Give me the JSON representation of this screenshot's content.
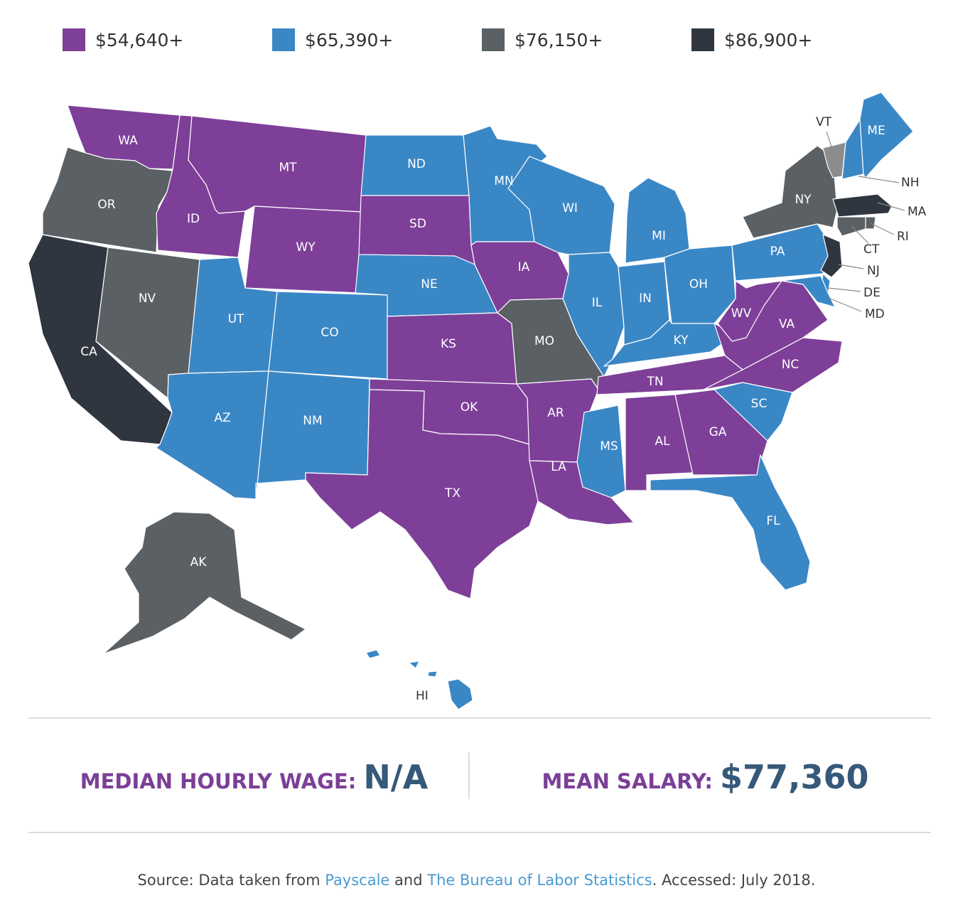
{
  "legend": [
    {
      "label": "$54,640+",
      "color": "#7e3f98"
    },
    {
      "label": "$65,390+",
      "color": "#3a87c6"
    },
    {
      "label": "$76,150+",
      "color": "#5b6064"
    },
    {
      "label": "$86,900+",
      "color": "#30363f"
    }
  ],
  "extra_color": "#8c8c8c",
  "states": [
    {
      "abbr": "WA",
      "tier": 0
    },
    {
      "abbr": "OR",
      "tier": 2
    },
    {
      "abbr": "CA",
      "tier": 3
    },
    {
      "abbr": "ID",
      "tier": 0
    },
    {
      "abbr": "NV",
      "tier": 2
    },
    {
      "abbr": "MT",
      "tier": 0
    },
    {
      "abbr": "WY",
      "tier": 0
    },
    {
      "abbr": "UT",
      "tier": 1
    },
    {
      "abbr": "AZ",
      "tier": 1
    },
    {
      "abbr": "CO",
      "tier": 1
    },
    {
      "abbr": "NM",
      "tier": 1
    },
    {
      "abbr": "ND",
      "tier": 1
    },
    {
      "abbr": "SD",
      "tier": 0
    },
    {
      "abbr": "NE",
      "tier": 1
    },
    {
      "abbr": "KS",
      "tier": 0
    },
    {
      "abbr": "OK",
      "tier": 0
    },
    {
      "abbr": "TX",
      "tier": 0
    },
    {
      "abbr": "MN",
      "tier": 1
    },
    {
      "abbr": "IA",
      "tier": 0
    },
    {
      "abbr": "MO",
      "tier": 2
    },
    {
      "abbr": "AR",
      "tier": 0
    },
    {
      "abbr": "LA",
      "tier": 0
    },
    {
      "abbr": "WI",
      "tier": 1
    },
    {
      "abbr": "IL",
      "tier": 1
    },
    {
      "abbr": "MI",
      "tier": 1
    },
    {
      "abbr": "IN",
      "tier": 1
    },
    {
      "abbr": "OH",
      "tier": 1
    },
    {
      "abbr": "KY",
      "tier": 1
    },
    {
      "abbr": "TN",
      "tier": 0
    },
    {
      "abbr": "MS",
      "tier": 1
    },
    {
      "abbr": "AL",
      "tier": 0
    },
    {
      "abbr": "GA",
      "tier": 0
    },
    {
      "abbr": "FL",
      "tier": 1
    },
    {
      "abbr": "SC",
      "tier": 1
    },
    {
      "abbr": "NC",
      "tier": 0
    },
    {
      "abbr": "VA",
      "tier": 0
    },
    {
      "abbr": "WV",
      "tier": 0
    },
    {
      "abbr": "PA",
      "tier": 1
    },
    {
      "abbr": "NY",
      "tier": 2
    },
    {
      "abbr": "VT",
      "tier": "extra"
    },
    {
      "abbr": "NH",
      "tier": 1
    },
    {
      "abbr": "ME",
      "tier": 1
    },
    {
      "abbr": "MA",
      "tier": 3
    },
    {
      "abbr": "RI",
      "tier": 2
    },
    {
      "abbr": "CT",
      "tier": 2
    },
    {
      "abbr": "NJ",
      "tier": 3
    },
    {
      "abbr": "DE",
      "tier": 1
    },
    {
      "abbr": "MD",
      "tier": 1
    },
    {
      "abbr": "AK",
      "tier": 2
    },
    {
      "abbr": "HI",
      "tier": 1
    }
  ],
  "stats": {
    "median_label": "MEDIAN HOURLY WAGE:",
    "median_value": "N/A",
    "mean_label": "MEAN SALARY:",
    "mean_value": "$77,360"
  },
  "source": {
    "prefix": "Source: Data taken from",
    "link1": "Payscale",
    "and": "and",
    "link2": "The Bureau of Labor Statistics",
    "suffix": ". Accessed: July 2018."
  }
}
